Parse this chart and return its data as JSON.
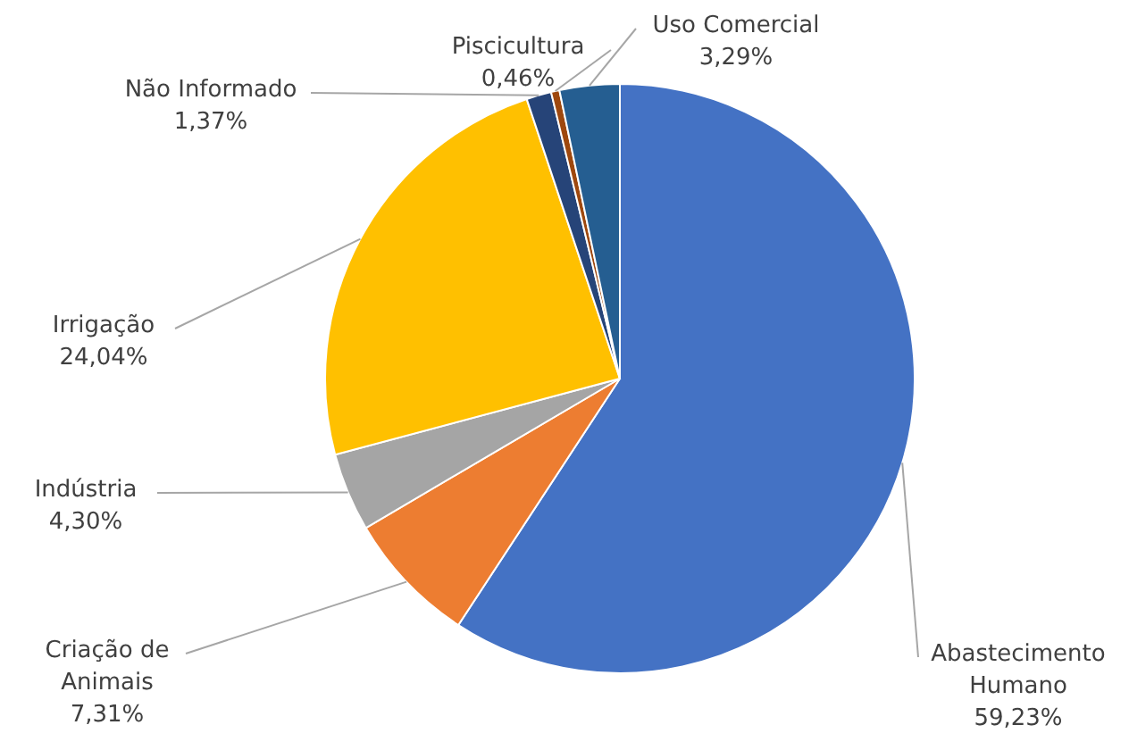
{
  "chart_data": {
    "type": "pie",
    "categories": [
      "Abastecimento Humano",
      "Criação de Animais",
      "Indústria",
      "Irrigação",
      "Não Informado",
      "Piscicultura",
      "Uso Comercial"
    ],
    "values": [
      59.23,
      7.31,
      4.3,
      24.04,
      1.37,
      0.46,
      3.29
    ],
    "value_labels": [
      "59,23%",
      "7,31%",
      "4,30%",
      "24,04%",
      "1,37%",
      "0,46%",
      "3,29%"
    ],
    "colors": [
      "#4472c4",
      "#ed7d31",
      "#a5a5a5",
      "#ffc000",
      "#264478",
      "#9e480e",
      "#255e91"
    ]
  }
}
